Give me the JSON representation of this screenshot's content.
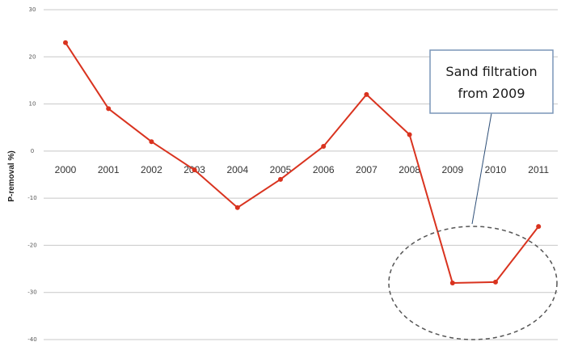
{
  "chart_data": {
    "type": "line",
    "title": "",
    "xlabel": "",
    "ylabel": "P-removal %)",
    "categories": [
      "2000",
      "2001",
      "2002",
      "2003",
      "2004",
      "2005",
      "2006",
      "2007",
      "2008",
      "2009",
      "2010",
      "2011"
    ],
    "series": [
      {
        "values": [
          23,
          9,
          2,
          -4,
          -12,
          -6,
          1,
          12,
          3.5,
          -28,
          -27.8,
          -16
        ]
      }
    ],
    "yticks": [
      30,
      20,
      10,
      0,
      -10,
      -20,
      -30,
      -40
    ],
    "ytick_labels": [
      "30",
      "20",
      "10",
      "0",
      "-10",
      "-20",
      "-30",
      "-40"
    ],
    "ylim": [
      -40,
      30
    ],
    "grid": true,
    "line_color": "#d9331f",
    "grid_color": "#c8c8c8",
    "annotation": {
      "lines": [
        "Sand filtration",
        "from 2009"
      ],
      "target_years": [
        "2009",
        "2010",
        "2011"
      ],
      "box_border_color": "#7a96b8",
      "ellipse_color": "#555555"
    }
  }
}
